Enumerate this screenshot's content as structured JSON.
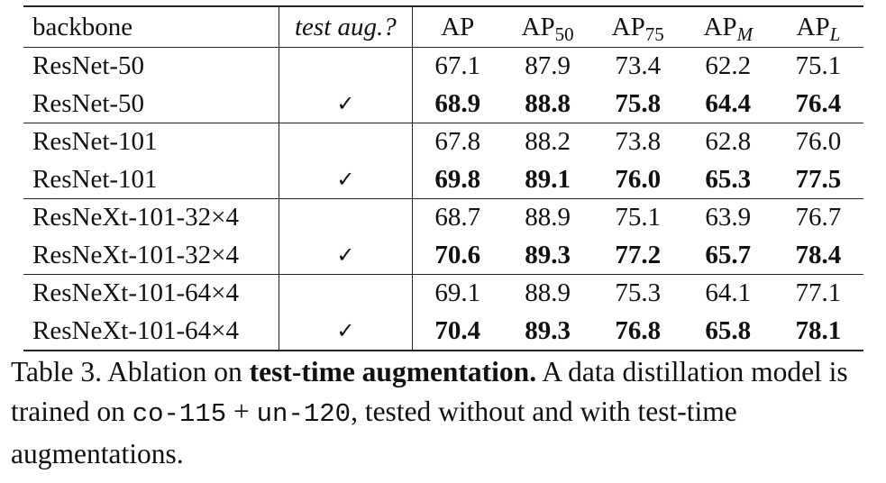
{
  "table": {
    "headers": {
      "backbone": "backbone",
      "test_aug": "test aug.?",
      "metrics": [
        {
          "base": "AP",
          "sub": "",
          "sub_italic": false
        },
        {
          "base": "AP",
          "sub": "50",
          "sub_italic": false
        },
        {
          "base": "AP",
          "sub": "75",
          "sub_italic": false
        },
        {
          "base": "AP",
          "sub": "M",
          "sub_italic": true
        },
        {
          "base": "AP",
          "sub": "L",
          "sub_italic": true
        }
      ]
    },
    "rows": [
      {
        "backbone": "ResNet-50",
        "test_aug": "",
        "values": [
          "67.1",
          "87.9",
          "73.4",
          "62.2",
          "75.1"
        ],
        "bold": false,
        "group_start": false
      },
      {
        "backbone": "ResNet-50",
        "test_aug": "✓",
        "values": [
          "68.9",
          "88.8",
          "75.8",
          "64.4",
          "76.4"
        ],
        "bold": true,
        "group_start": false
      },
      {
        "backbone": "ResNet-101",
        "test_aug": "",
        "values": [
          "67.8",
          "88.2",
          "73.8",
          "62.8",
          "76.0"
        ],
        "bold": false,
        "group_start": true
      },
      {
        "backbone": "ResNet-101",
        "test_aug": "✓",
        "values": [
          "69.8",
          "89.1",
          "76.0",
          "65.3",
          "77.5"
        ],
        "bold": true,
        "group_start": false
      },
      {
        "backbone": "ResNeXt-101-32×4",
        "test_aug": "",
        "values": [
          "68.7",
          "88.9",
          "75.1",
          "63.9",
          "76.7"
        ],
        "bold": false,
        "group_start": true
      },
      {
        "backbone": "ResNeXt-101-32×4",
        "test_aug": "✓",
        "values": [
          "70.6",
          "89.3",
          "77.2",
          "65.7",
          "78.4"
        ],
        "bold": true,
        "group_start": false
      },
      {
        "backbone": "ResNeXt-101-64×4",
        "test_aug": "",
        "values": [
          "69.1",
          "88.9",
          "75.3",
          "64.1",
          "77.1"
        ],
        "bold": false,
        "group_start": true
      },
      {
        "backbone": "ResNeXt-101-64×4",
        "test_aug": "✓",
        "values": [
          "70.4",
          "89.3",
          "76.8",
          "65.8",
          "78.1"
        ],
        "bold": true,
        "group_start": false
      }
    ]
  },
  "caption": {
    "label": "Table 3. Ablation on ",
    "bold": "test-time augmentation.",
    "text1": " A data distillation model is trained on ",
    "mono1": "co-115",
    "text2": " + ",
    "mono2": "un-120",
    "text3": ", tested without and with test-time augmentations."
  }
}
